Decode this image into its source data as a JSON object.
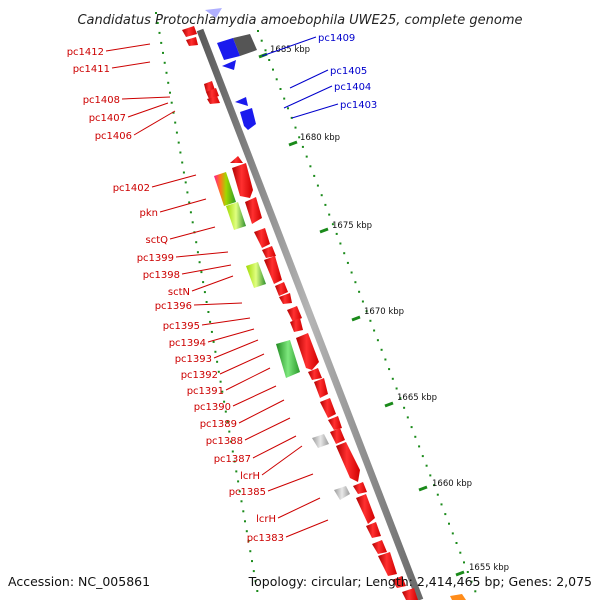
{
  "title": "Candidatus Protochlamydia amoebophila UWE25, complete genome",
  "accession": "Accession: NC_005861",
  "topology": "Topology: circular; Length: 2,414,465 bp; Genes: 2,075",
  "colors": {
    "red_label": "#cc0000",
    "blue_label": "#0000cc",
    "gene_red": "#ee1111",
    "gene_blue": "#1a1aee",
    "backbone": "#808080",
    "tick": "#1a8a1a"
  },
  "kbp_ticks": [
    "1685 kbp",
    "1680 kbp",
    "1675 kbp",
    "1670 kbp",
    "1665 kbp",
    "1660 kbp",
    "1655 kbp"
  ],
  "left_labels": [
    "pc1412",
    "pc1411",
    "pc1408",
    "pc1407",
    "pc1406",
    "pc1402",
    "pkn",
    "sctQ",
    "pc1399",
    "pc1398",
    "sctN",
    "pc1396",
    "pc1395",
    "pc1394",
    "pc1393",
    "pc1392",
    "pc1391",
    "pc1390",
    "pc1389",
    "pc1388",
    "pc1387",
    "lcrH",
    "pc1385",
    "lcrH",
    "pc1383"
  ],
  "right_labels": [
    "pc1409",
    "pc1405",
    "pc1404",
    "pc1403"
  ]
}
